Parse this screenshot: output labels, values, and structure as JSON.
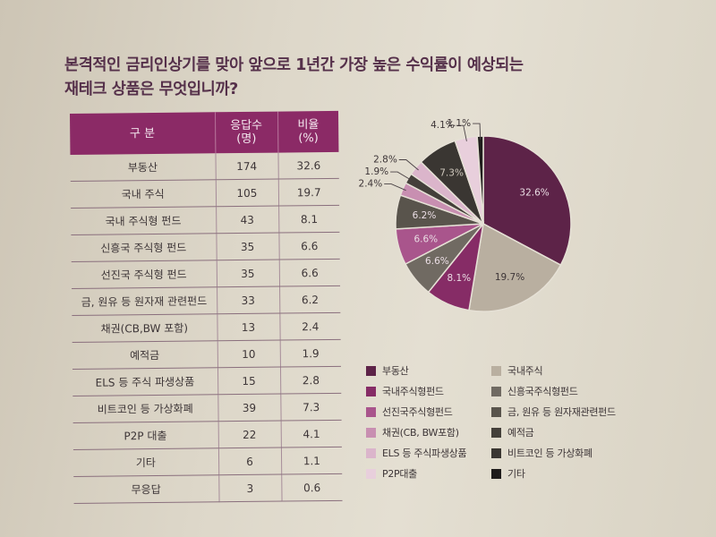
{
  "title": {
    "line1": "본격적인 금리인상기를 맞아 앞으로 1년간 가장 높은 수익률이 예상되는",
    "line2": "재테크 상품은 무엇입니까?"
  },
  "table": {
    "headers": {
      "col1": "구 분",
      "col2_line1": "응답수",
      "col2_line2": "(명)",
      "col3_line1": "비율",
      "col3_line2": "(%)"
    },
    "rows": [
      {
        "label": "부동산",
        "count": "174",
        "ratio": "32.6"
      },
      {
        "label": "국내 주식",
        "count": "105",
        "ratio": "19.7"
      },
      {
        "label": "국내 주식형 펀드",
        "count": "43",
        "ratio": "8.1"
      },
      {
        "label": "신흥국 주식형 펀드",
        "count": "35",
        "ratio": "6.6"
      },
      {
        "label": "선진국 주식형 펀드",
        "count": "35",
        "ratio": "6.6"
      },
      {
        "label": "금, 원유 등 원자재 관련펀드",
        "count": "33",
        "ratio": "6.2"
      },
      {
        "label": "채권(CB,BW 포함)",
        "count": "13",
        "ratio": "2.4"
      },
      {
        "label": "예적금",
        "count": "10",
        "ratio": "1.9"
      },
      {
        "label": "ELS 등 주식 파생상품",
        "count": "15",
        "ratio": "2.8"
      },
      {
        "label": "비트코인 등 가상화폐",
        "count": "39",
        "ratio": "7.3"
      },
      {
        "label": "P2P 대출",
        "count": "22",
        "ratio": "4.1"
      },
      {
        "label": "기타",
        "count": "6",
        "ratio": "1.1"
      },
      {
        "label": "무응답",
        "count": "3",
        "ratio": "0.6"
      }
    ]
  },
  "colors": {
    "header_bg": "#8b2a66",
    "title": "#55304a"
  },
  "chart_data": {
    "type": "pie",
    "title": "",
    "slices": [
      {
        "name": "부동산",
        "value": 32.6,
        "label": "32.6%",
        "color": "#5d2348",
        "label_color": "#eadde4"
      },
      {
        "name": "국내주식",
        "value": 19.7,
        "label": "19.7%",
        "color": "#b9afa0",
        "label_color": "#3d3537"
      },
      {
        "name": "국내주식형펀드",
        "value": 8.1,
        "label": "8.1%",
        "color": "#862c66",
        "label_color": "#eadde4"
      },
      {
        "name": "신흥국주식형펀드",
        "value": 6.6,
        "label": "6.6%",
        "color": "#706a62",
        "label_color": "#eadde4"
      },
      {
        "name": "선진국주식형펀드",
        "value": 6.6,
        "label": "6.6%",
        "color": "#a9558c",
        "label_color": "#eadde4"
      },
      {
        "name": "금, 원유 등 원자재관련펀드",
        "value": 6.2,
        "label": "6.2%",
        "color": "#59544c",
        "label_color": "#eadde4"
      },
      {
        "name": "채권(CB, BW포함)",
        "value": 2.4,
        "label": "2.4%",
        "color": "#c88fb1",
        "label_color": "#3d3537"
      },
      {
        "name": "예적금",
        "value": 1.9,
        "label": "1.9%",
        "color": "#44403a",
        "label_color": "#3d3537"
      },
      {
        "name": "ELS 등 주식파생상품",
        "value": 2.8,
        "label": "2.8%",
        "color": "#dbb5cb",
        "label_color": "#3d3537"
      },
      {
        "name": "비트코인 등 가상화폐",
        "value": 7.3,
        "label": "7.3%",
        "color": "#3a3632",
        "label_color": "#cfc8bd"
      },
      {
        "name": "P2P대출",
        "value": 4.1,
        "label": "4.1%",
        "color": "#e8cfdc",
        "label_color": "#3d3537"
      },
      {
        "name": "기타",
        "value": 1.1,
        "label": "1.1%",
        "color": "#1f1c1b",
        "label_color": "#3d3537"
      }
    ],
    "legend": {
      "placement": "bottom",
      "order": [
        "부동산",
        "국내주식",
        "국내주식형펀드",
        "신흥국주식형펀드",
        "선진국주식형펀드",
        "금, 원유 등 원자재관련펀드",
        "채권(CB, BW포함)",
        "예적금",
        "ELS 등 주식파생상품",
        "비트코인 등 가상화폐",
        "P2P대출",
        "기타"
      ]
    }
  }
}
